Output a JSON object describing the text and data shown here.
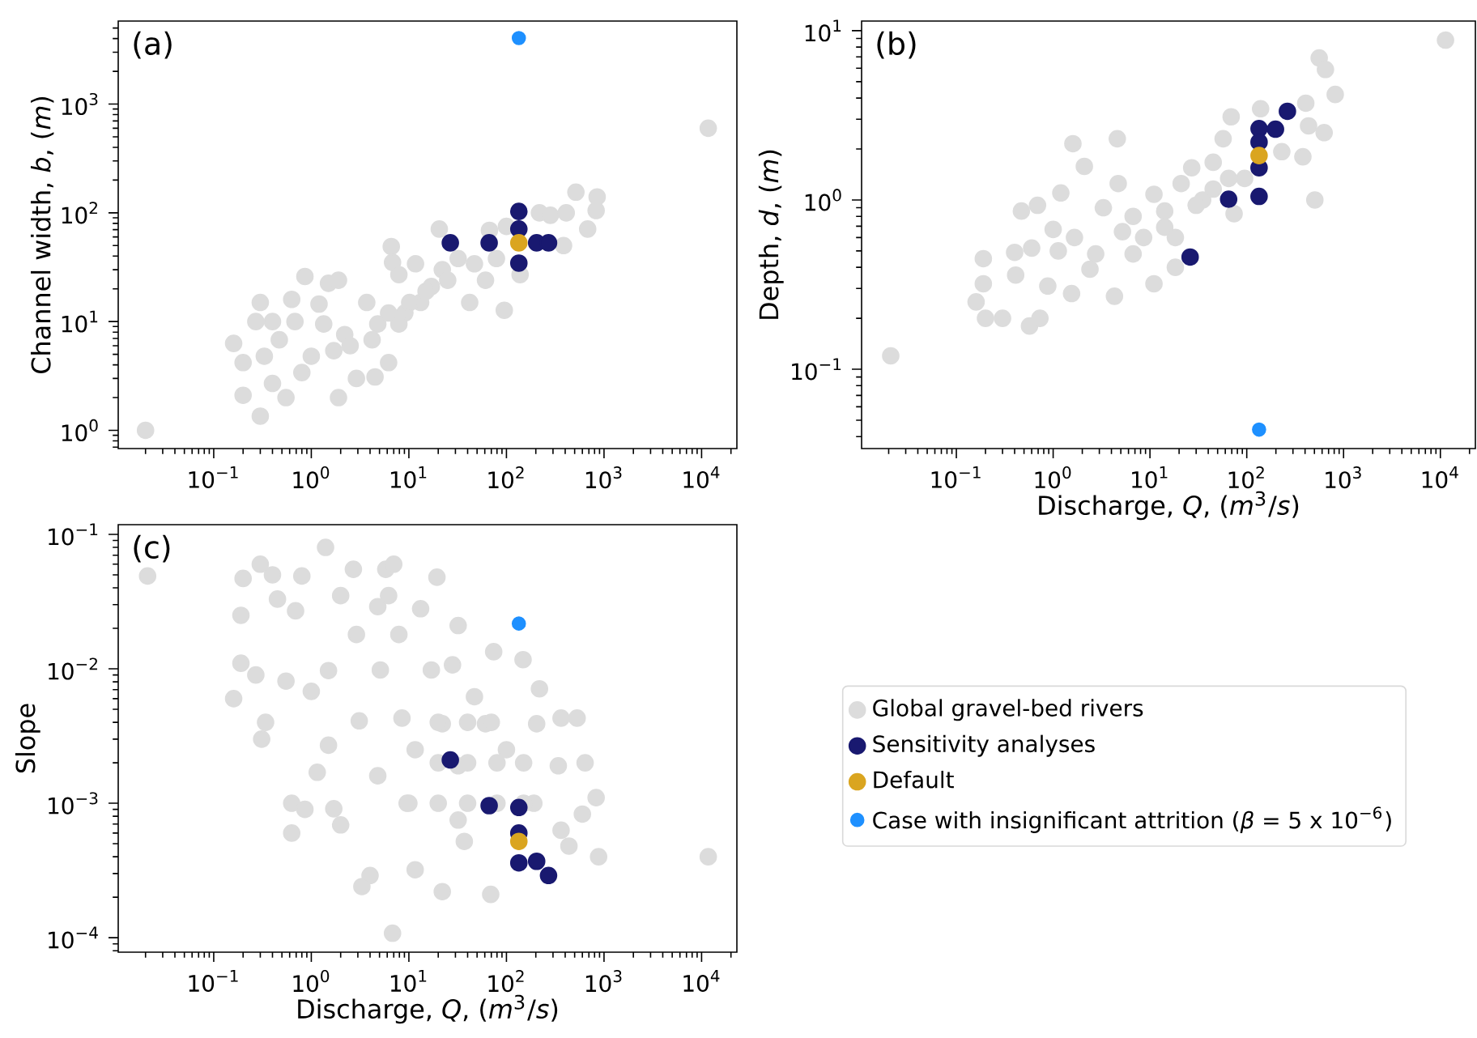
{
  "chart_data": [
    {
      "type": "scatter",
      "ylabel": "Channel width, *b*, (*m*)",
      "annotations": [
        "(a)"
      ],
      "log": "xy",
      "xlim": [
        0.0105,
        23000
      ],
      "ylim": [
        0.68,
        5800
      ],
      "xticks": [
        {
          "value": 0.1,
          "label": "10$^{−1}$"
        },
        {
          "value": 1,
          "label": "10$^{0}$"
        },
        {
          "value": 10,
          "label": "10$^{1}$"
        },
        {
          "value": 100,
          "label": "10$^{2}$"
        },
        {
          "value": 1000,
          "label": "10$^{3}$"
        },
        {
          "value": 10000,
          "label": "10$^{4}$"
        }
      ],
      "yticks": [
        {
          "value": 1,
          "label": "10$^{0}$"
        },
        {
          "value": 10,
          "label": "10$^{1}$"
        },
        {
          "value": 100,
          "label": "10$^{2}$"
        },
        {
          "value": 1000,
          "label": "10$^{3}$"
        }
      ],
      "series": [
        {
          "color": "#dcdcdc",
          "x": [
            0.02,
            0.16,
            0.2,
            0.2,
            0.3,
            0.3,
            0.33,
            0.27,
            0.4,
            0.47,
            0.4,
            0.55,
            0.68,
            0.63,
            0.86,
            1.0,
            0.8,
            1.2,
            1.5,
            1.9,
            1.9,
            1.34,
            1.7,
            2.2,
            2.9,
            4.5,
            3.7,
            6.2,
            6.6,
            6.8,
            7.9,
            4.8,
            9.1,
            11.7,
            13.2,
            17,
            22,
            20.5,
            32,
            42,
            61,
            95,
            67,
            100,
            138,
            218,
            282,
            385,
            410,
            515,
            680,
            850,
            830,
            11700,
            2.5,
            6.2,
            10.2,
            15,
            25,
            47,
            79,
            4.2,
            7.9
          ],
          "values": [
            1.0,
            6.3,
            4.2,
            2.1,
            1.35,
            15,
            4.8,
            10,
            10,
            6.8,
            2.7,
            2.0,
            10,
            16,
            26,
            4.8,
            3.4,
            14.5,
            22.5,
            24,
            2.0,
            9.5,
            5.4,
            7.6,
            3.0,
            3.1,
            15,
            4.2,
            49,
            35,
            27,
            9.5,
            12,
            34,
            15,
            21,
            30,
            71,
            38,
            15,
            24,
            12.7,
            69,
            75,
            27,
            100,
            95,
            50,
            100,
            155,
            71,
            140,
            105,
            600,
            6.0,
            12,
            15,
            19,
            24,
            34,
            38,
            6.8,
            9.5
          ]
        },
        {
          "color": "#191970",
          "x": [
            26.6,
            66.5,
            134,
            134,
            134,
            204,
            270
          ],
          "values": [
            53,
            53,
            103,
            71,
            34.5,
            53,
            53
          ]
        },
        {
          "color": "#daa520",
          "x": [
            134
          ],
          "values": [
            53
          ]
        },
        {
          "color": "#1e90ff",
          "x": [
            134
          ],
          "values": [
            4050
          ]
        }
      ]
    },
    {
      "type": "scatter",
      "xlabel": "Discharge, *Q*, (*m*$^{3}$/*s*)",
      "ylabel": "Depth, *d*, (*m*)",
      "annotations": [
        "(b)"
      ],
      "log": "xy",
      "xlim": [
        0.0105,
        23000
      ],
      "ylim": [
        0.034,
        11.4
      ],
      "xticks": [
        {
          "value": 0.1,
          "label": "10$^{−1}$"
        },
        {
          "value": 1,
          "label": "10$^{0}$"
        },
        {
          "value": 10,
          "label": "10$^{1}$"
        },
        {
          "value": 100,
          "label": "10$^{2}$"
        },
        {
          "value": 1000,
          "label": "10$^{3}$"
        },
        {
          "value": 10000,
          "label": "10$^{4}$"
        }
      ],
      "yticks": [
        {
          "value": 0.1,
          "label": "10$^{−1}$"
        },
        {
          "value": 1,
          "label": "10$^{0}$"
        },
        {
          "value": 10,
          "label": "10$^{1}$"
        }
      ],
      "series": [
        {
          "color": "#dcdcdc",
          "x": [
            0.021,
            0.16,
            0.19,
            0.2,
            0.19,
            0.3,
            0.41,
            0.4,
            0.47,
            0.57,
            0.69,
            0.6,
            0.73,
            1.0,
            1.13,
            1.2,
            0.88,
            1.6,
            2.1,
            1.66,
            1.55,
            2.75,
            3.3,
            4.6,
            4.7,
            4.3,
            5.2,
            6.7,
            8.6,
            11,
            11,
            14.2,
            18.3,
            21,
            27,
            35,
            45,
            57,
            69,
            74,
            95,
            139,
            230,
            380,
            407,
            435,
            505,
            630,
            560,
            650,
            820,
            11300,
            2.4,
            6.7,
            14.2,
            30,
            65,
            18.3,
            45
          ],
          "values": [
            0.12,
            0.25,
            0.45,
            0.2,
            0.32,
            0.2,
            0.36,
            0.49,
            0.86,
            0.18,
            0.93,
            0.52,
            0.2,
            0.67,
            0.5,
            1.1,
            0.31,
            2.15,
            1.58,
            0.6,
            0.28,
            0.48,
            0.9,
            2.3,
            1.25,
            0.27,
            0.65,
            0.8,
            0.6,
            1.08,
            0.32,
            0.86,
            0.4,
            1.25,
            1.55,
            1.0,
            1.67,
            2.3,
            3.1,
            0.83,
            1.34,
            3.46,
            1.93,
            1.8,
            3.73,
            2.74,
            1.0,
            2.5,
            6.9,
            5.9,
            4.2,
            8.8,
            0.39,
            0.48,
            0.69,
            0.93,
            1.34,
            0.6,
            1.16
          ]
        },
        {
          "color": "#191970",
          "x": [
            26,
            65,
            134,
            134,
            134,
            134,
            198,
            263
          ],
          "values": [
            0.46,
            1.01,
            2.64,
            2.2,
            1.55,
            1.05,
            2.62,
            3.34
          ]
        },
        {
          "color": "#daa520",
          "x": [
            134
          ],
          "values": [
            1.83
          ]
        },
        {
          "color": "#1e90ff",
          "x": [
            134
          ],
          "values": [
            0.044
          ]
        }
      ]
    },
    {
      "type": "scatter",
      "xlabel": "Discharge, *Q*, (*m*$^{3}$/*s*)",
      "ylabel": "Slope",
      "annotations": [
        "(c)"
      ],
      "log": "xy",
      "legend": "right",
      "xlim": [
        0.0105,
        23000
      ],
      "ylim": [
        7.8e-05,
        0.118
      ],
      "xticks": [
        {
          "value": 0.1,
          "label": "10$^{−1}$"
        },
        {
          "value": 1,
          "label": "10$^{0}$"
        },
        {
          "value": 10,
          "label": "10$^{1}$"
        },
        {
          "value": 100,
          "label": "10$^{2}$"
        },
        {
          "value": 1000,
          "label": "10$^{3}$"
        },
        {
          "value": 10000,
          "label": "10$^{4}$"
        }
      ],
      "yticks": [
        {
          "value": 0.0001,
          "label": "10$^{−4}$"
        },
        {
          "value": 0.001,
          "label": "10$^{−3}$"
        },
        {
          "value": 0.01,
          "label": "10$^{−2}$"
        },
        {
          "value": 0.1,
          "label": "10$^{−1}$"
        }
      ],
      "series": [
        {
          "name": "Global gravel-bed rivers",
          "color": "#dcdcdc",
          "x": [
            0.021,
            0.16,
            0.19,
            0.2,
            0.19,
            0.3,
            0.31,
            0.34,
            0.27,
            0.4,
            0.45,
            0.55,
            0.63,
            0.63,
            0.69,
            0.8,
            0.86,
            1.0,
            1.15,
            1.4,
            1.5,
            1.5,
            1.7,
            2.0,
            2.0,
            2.7,
            2.9,
            3.1,
            4.0,
            3.3,
            4.8,
            5.8,
            7.0,
            6.2,
            7.9,
            5.1,
            8.5,
            4.8,
            6.8,
            9.6,
            11.6,
            13.2,
            19.4,
            17,
            22,
            22,
            11.6,
            32,
            28,
            32,
            32,
            37,
            47,
            61,
            69,
            74,
            100,
            148,
            218,
            204,
            191,
            363,
            340,
            363,
            437,
            640,
            530,
            600,
            830,
            880,
            11700,
            20,
            40,
            80,
            150,
            10,
            20,
            40,
            80,
            150,
            20,
            40,
            70
          ],
          "values": [
            0.049,
            0.006,
            0.025,
            0.047,
            0.011,
            0.06,
            0.003,
            0.004,
            0.009,
            0.05,
            0.033,
            0.0081,
            0.001,
            0.0006,
            0.027,
            0.049,
            0.0009,
            0.0068,
            0.0017,
            0.08,
            0.0097,
            0.0027,
            0.00091,
            0.00069,
            0.035,
            0.055,
            0.018,
            0.0041,
            0.00029,
            0.00024,
            0.029,
            0.055,
            0.06,
            0.035,
            0.018,
            0.0098,
            0.0043,
            0.0016,
            0.000108,
            0.001,
            0.0025,
            0.028,
            0.048,
            0.0098,
            0.0039,
            0.00022,
            0.00032,
            0.021,
            0.0107,
            0.0019,
            0.00075,
            0.00052,
            0.0062,
            0.0039,
            0.00021,
            0.0134,
            0.0025,
            0.0117,
            0.0071,
            0.0039,
            0.001,
            0.0043,
            0.0019,
            0.00063,
            0.00048,
            0.002,
            0.0043,
            0.00083,
            0.0011,
            0.0004,
            0.0004,
            0.002,
            0.002,
            0.002,
            0.002,
            0.001,
            0.001,
            0.001,
            0.001,
            0.001,
            0.004,
            0.004,
            0.004
          ]
        },
        {
          "name": "Sensitivity analyses",
          "color": "#191970",
          "x": [
            26.6,
            66.5,
            134,
            134,
            134,
            204,
            270
          ],
          "values": [
            0.0021,
            0.00096,
            0.00093,
            0.0006,
            0.00036,
            0.00037,
            0.00029
          ]
        },
        {
          "name": "Default",
          "color": "#daa520",
          "x": [
            134
          ],
          "values": [
            0.00052
          ]
        },
        {
          "name": "Case with insignificant attrition (*β* = 5 x 10$^{−6}$)",
          "color": "#1e90ff",
          "x": [
            134
          ],
          "values": [
            0.0217
          ]
        }
      ]
    }
  ]
}
